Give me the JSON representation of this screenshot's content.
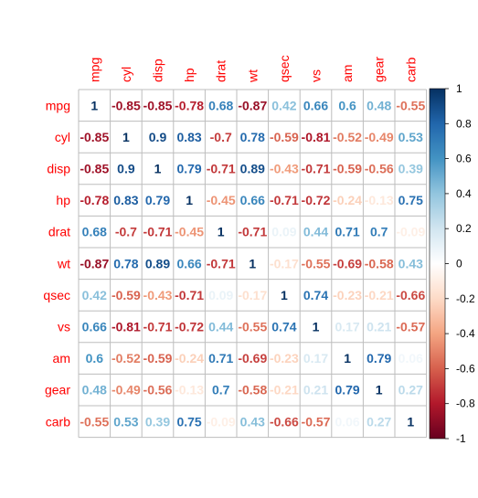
{
  "colors": {
    "label": "#ff0000",
    "grid": "#bdbdbd",
    "scale_low": "#67001f",
    "scale_mid": "#ffffff",
    "scale_high": "#053061"
  },
  "chart_data": {
    "type": "heatmap",
    "variables": [
      "mpg",
      "cyl",
      "disp",
      "hp",
      "drat",
      "wt",
      "qsec",
      "vs",
      "am",
      "gear",
      "carb"
    ],
    "value_range": [
      -1,
      1
    ],
    "colorbar_ticks": [
      "1",
      "0.8",
      "0.6",
      "0.4",
      "0.2",
      "0",
      "-0.2",
      "-0.4",
      "-0.6",
      "-0.8",
      "-1"
    ],
    "colorbar_tick_values": [
      1,
      0.8,
      0.6,
      0.4,
      0.2,
      0,
      -0.2,
      -0.4,
      -0.6,
      -0.8,
      -1
    ],
    "legend_position": "right",
    "matrix": [
      [
        1,
        -0.85,
        -0.85,
        -0.78,
        0.68,
        -0.87,
        0.42,
        0.66,
        0.6,
        0.48,
        -0.55
      ],
      [
        -0.85,
        1,
        0.9,
        0.83,
        -0.7,
        0.78,
        -0.59,
        -0.81,
        -0.52,
        -0.49,
        0.53
      ],
      [
        -0.85,
        0.9,
        1,
        0.79,
        -0.71,
        0.89,
        -0.43,
        -0.71,
        -0.59,
        -0.56,
        0.39
      ],
      [
        -0.78,
        0.83,
        0.79,
        1,
        -0.45,
        0.66,
        -0.71,
        -0.72,
        -0.24,
        -0.13,
        0.75
      ],
      [
        0.68,
        -0.7,
        -0.71,
        -0.45,
        1,
        -0.71,
        0.09,
        0.44,
        0.71,
        0.7,
        -0.09
      ],
      [
        -0.87,
        0.78,
        0.89,
        0.66,
        -0.71,
        1,
        -0.17,
        -0.55,
        -0.69,
        -0.58,
        0.43
      ],
      [
        0.42,
        -0.59,
        -0.43,
        -0.71,
        0.09,
        -0.17,
        1,
        0.74,
        -0.23,
        -0.21,
        -0.66
      ],
      [
        0.66,
        -0.81,
        -0.71,
        -0.72,
        0.44,
        -0.55,
        0.74,
        1,
        0.17,
        0.21,
        -0.57
      ],
      [
        0.6,
        -0.52,
        -0.59,
        -0.24,
        0.71,
        -0.69,
        -0.23,
        0.17,
        1,
        0.79,
        0.06
      ],
      [
        0.48,
        -0.49,
        -0.56,
        -0.13,
        0.7,
        -0.58,
        -0.21,
        0.21,
        0.79,
        1,
        0.27
      ],
      [
        -0.55,
        0.53,
        0.39,
        0.75,
        -0.09,
        0.43,
        -0.66,
        -0.57,
        0.06,
        0.27,
        1
      ]
    ],
    "labels": [
      [
        "1",
        "-0.85",
        "-0.85",
        "-0.78",
        "0.68",
        "-0.87",
        "0.42",
        "0.66",
        "0.6",
        "0.48",
        "-0.55"
      ],
      [
        "-0.85",
        "1",
        "0.9",
        "0.83",
        "-0.7",
        "0.78",
        "-0.59",
        "-0.81",
        "-0.52",
        "-0.49",
        "0.53"
      ],
      [
        "-0.85",
        "0.9",
        "1",
        "0.79",
        "-0.71",
        "0.89",
        "-0.43",
        "-0.71",
        "-0.59",
        "-0.56",
        "0.39"
      ],
      [
        "-0.78",
        "0.83",
        "0.79",
        "1",
        "-0.45",
        "0.66",
        "-0.71",
        "-0.72",
        "-0.24",
        "-0.13",
        "0.75"
      ],
      [
        "0.68",
        "-0.7",
        "-0.71",
        "-0.45",
        "1",
        "-0.71",
        "0.09",
        "0.44",
        "0.71",
        "0.7",
        "-0.09"
      ],
      [
        "-0.87",
        "0.78",
        "0.89",
        "0.66",
        "-0.71",
        "1",
        "-0.17",
        "-0.55",
        "-0.69",
        "-0.58",
        "0.43"
      ],
      [
        "0.42",
        "-0.59",
        "-0.43",
        "-0.71",
        "0.09",
        "-0.17",
        "1",
        "0.74",
        "-0.23",
        "-0.21",
        "-0.66"
      ],
      [
        "0.66",
        "-0.81",
        "-0.71",
        "-0.72",
        "0.44",
        "-0.55",
        "0.74",
        "1",
        "0.17",
        "0.21",
        "-0.57"
      ],
      [
        "0.6",
        "-0.52",
        "-0.59",
        "-0.24",
        "0.71",
        "-0.69",
        "-0.23",
        "0.17",
        "1",
        "0.79",
        "0.06"
      ],
      [
        "0.48",
        "-0.49",
        "-0.56",
        "-0.13",
        "0.7",
        "-0.58",
        "-0.21",
        "0.21",
        "0.79",
        "1",
        "0.27"
      ],
      [
        "-0.55",
        "0.53",
        "0.39",
        "0.75",
        "-0.09",
        "0.43",
        "-0.66",
        "-0.57",
        "0.06",
        "0.27",
        "1"
      ]
    ]
  }
}
